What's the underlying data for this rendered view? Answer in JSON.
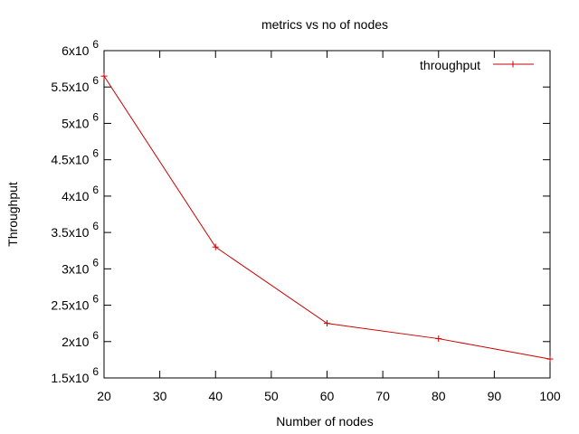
{
  "chart_data": {
    "type": "line",
    "title": "metrics vs no of nodes",
    "xlabel": "Number of nodes",
    "ylabel": "Throughput",
    "xlim": [
      20,
      100
    ],
    "ylim": [
      1500000,
      6000000
    ],
    "x_ticks": [
      20,
      30,
      40,
      50,
      60,
      70,
      80,
      90,
      100
    ],
    "x_tick_labels": [
      "20",
      "30",
      "40",
      "50",
      "60",
      "70",
      "80",
      "90",
      "100"
    ],
    "y_ticks": [
      1500000,
      2000000,
      2500000,
      3000000,
      3500000,
      4000000,
      4500000,
      5000000,
      5500000,
      6000000
    ],
    "y_tick_labels": [
      {
        "mantissa": "1.5x10",
        "exp": "6"
      },
      {
        "mantissa": "2x10",
        "exp": "6"
      },
      {
        "mantissa": "2.5x10",
        "exp": "6"
      },
      {
        "mantissa": "3x10",
        "exp": "6"
      },
      {
        "mantissa": "3.5x10",
        "exp": "6"
      },
      {
        "mantissa": "4x10",
        "exp": "6"
      },
      {
        "mantissa": "4.5x10",
        "exp": "6"
      },
      {
        "mantissa": "5x10",
        "exp": "6"
      },
      {
        "mantissa": "5.5x10",
        "exp": "6"
      },
      {
        "mantissa": "6x10",
        "exp": "6"
      }
    ],
    "legend": "top-right",
    "grid": false,
    "series": [
      {
        "name": "throughput",
        "color": "#cc0000",
        "marker": "plus",
        "x": [
          20,
          40,
          60,
          80,
          100
        ],
        "y": [
          5650000,
          3300000,
          2250000,
          2040000,
          1760000
        ]
      }
    ]
  }
}
